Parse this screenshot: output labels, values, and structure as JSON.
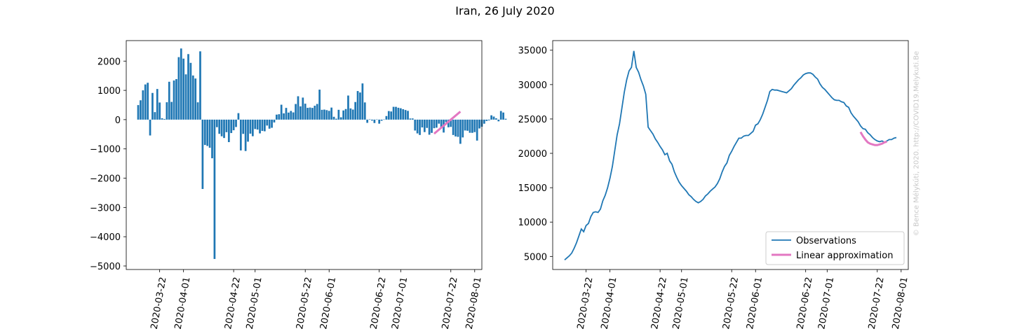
{
  "title": "Iran, 26 July 2020",
  "watermark": "© Bence Mélykúti, 2020. http://COVID19.Melykuti.Be",
  "colors": {
    "observations": "#1f77b4",
    "approximation": "#e377c2"
  },
  "chart_data": [
    {
      "type": "bar",
      "date_start": "2020-03-13",
      "values": [
        497,
        661,
        1001,
        1202,
        1259,
        -541,
        912,
        257,
        1047,
        585,
        48,
        23,
        594,
        1294,
        606,
        1338,
        1385,
        2135,
        2431,
        2085,
        1547,
        2239,
        1940,
        1508,
        1405,
        592,
        2333,
        -2369,
        -866,
        -899,
        -961,
        -1320,
        -4760,
        -258,
        -485,
        -569,
        -628,
        -429,
        -768,
        -458,
        -363,
        -252,
        222,
        -1052,
        -487,
        -1072,
        -753,
        -479,
        -567,
        -321,
        -340,
        -470,
        -386,
        -398,
        -202,
        -309,
        -278,
        -97,
        171,
        185,
        510,
        214,
        401,
        241,
        297,
        247,
        534,
        799,
        453,
        753,
        545,
        403,
        413,
        401,
        475,
        535,
        1025,
        336,
        343,
        325,
        300,
        412,
        98,
        31,
        336,
        80,
        314,
        363,
        823,
        384,
        344,
        602,
        977,
        927,
        1237,
        588,
        -109,
        13,
        -33,
        -116,
        7,
        -138,
        -38,
        7,
        123,
        293,
        279,
        438,
        437,
        406,
        389,
        356,
        329,
        300,
        39,
        40,
        -372,
        -471,
        -524,
        -267,
        -425,
        -283,
        -515,
        -453,
        -293,
        -275,
        -138,
        -279,
        -441,
        -88,
        -262,
        -248,
        -525,
        -574,
        -589,
        -826,
        -608,
        -371,
        -380,
        -449,
        -451,
        -426,
        -716,
        -301,
        -241,
        -139,
        -47,
        -25,
        148,
        105,
        45,
        -58,
        295,
        243,
        30
      ],
      "fit_start": "2020-07-15",
      "fit_end": "2020-07-26",
      "fit_values": [
        -481,
        274
      ],
      "xticks": [
        "2020-03-22",
        "2020-04-01",
        "2020-04-22",
        "2020-05-01",
        "2020-05-22",
        "2020-06-01",
        "2020-06-22",
        "2020-07-01",
        "2020-07-22",
        "2020-08-01"
      ],
      "yticks": [
        -5000,
        -4000,
        -3000,
        -2000,
        -1000,
        0,
        1000,
        2000
      ],
      "xlim": [
        "2020-03-08",
        "2020-08-04"
      ],
      "ylim": [
        -5120,
        2700
      ],
      "ytick_labels": [
        "−5000",
        "−4000",
        "−3000",
        "−2000",
        "−1000",
        "0",
        "1000",
        "2000"
      ]
    },
    {
      "type": "line",
      "date_start": "2020-03-13",
      "values": [
        4500,
        4800,
        5100,
        5500,
        6200,
        7000,
        8000,
        9000,
        8600,
        9500,
        9800,
        10800,
        11400,
        11500,
        11400,
        11900,
        13100,
        13900,
        15000,
        16400,
        18100,
        20400,
        22700,
        24300,
        26600,
        28900,
        30700,
        32000,
        32500,
        34900,
        32500,
        31800,
        30700,
        29800,
        28600,
        23800,
        23300,
        22800,
        22100,
        21600,
        21000,
        20500,
        19800,
        20000,
        18900,
        18400,
        17300,
        16500,
        15800,
        15300,
        14900,
        14500,
        14000,
        13700,
        13300,
        13000,
        12800,
        13000,
        13300,
        13800,
        14100,
        14500,
        14800,
        15100,
        15600,
        16300,
        17300,
        18100,
        18600,
        19700,
        20300,
        21000,
        21600,
        22200,
        22200,
        22500,
        22600,
        22600,
        22900,
        23200,
        24100,
        24300,
        24900,
        25700,
        26700,
        27700,
        29000,
        29300,
        29200,
        29200,
        29100,
        29000,
        28900,
        28800,
        29100,
        29400,
        29900,
        30300,
        30700,
        31000,
        31400,
        31600,
        31700,
        31700,
        31500,
        31100,
        30800,
        30100,
        29600,
        29300,
        28900,
        28500,
        28100,
        27800,
        27700,
        27700,
        27500,
        27400,
        26900,
        26700,
        25900,
        25400,
        25000,
        24600,
        24000,
        23600,
        23500,
        23000,
        22700,
        22300,
        22000,
        21800,
        21700,
        21800,
        21600,
        21800,
        22000,
        22000,
        22200,
        22300
      ],
      "fit_start": "2020-07-15",
      "fit_end": "2020-07-26",
      "fit_values": [
        23100,
        22500,
        22000,
        21600,
        21400,
        21300,
        21200,
        21200,
        21300,
        21400,
        21600,
        21700
      ],
      "xticks": [
        "2020-03-22",
        "2020-04-01",
        "2020-04-22",
        "2020-05-01",
        "2020-05-22",
        "2020-06-01",
        "2020-06-22",
        "2020-07-01",
        "2020-07-22",
        "2020-08-01"
      ],
      "yticks": [
        5000,
        10000,
        15000,
        20000,
        25000,
        30000,
        35000
      ],
      "xlim": [
        "2020-03-08",
        "2020-08-04"
      ],
      "ylim": [
        3100,
        36400
      ],
      "legend": [
        "Observations",
        "Linear approximation"
      ],
      "legend_position": "lower right"
    }
  ]
}
